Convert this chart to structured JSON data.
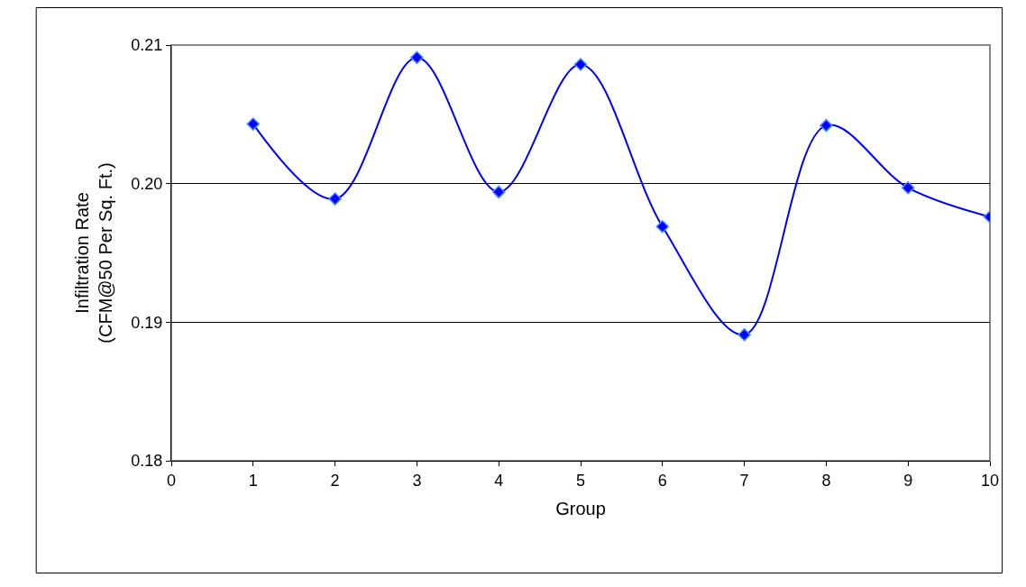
{
  "chart_data": {
    "type": "line",
    "xlabel": "Group",
    "ylabel": "Infiltration Rate\n(CFM@50 Per Sq. Ft.)",
    "x": [
      1,
      2,
      3,
      4,
      5,
      6,
      7,
      8,
      9,
      10
    ],
    "series": [
      {
        "color": "#0000ff",
        "values": [
          0.2043,
          0.1989,
          0.2091,
          0.1994,
          0.2086,
          0.1969,
          0.1891,
          0.2042,
          0.1997,
          0.1976
        ]
      }
    ],
    "xlim": [
      0,
      10
    ],
    "xticks": [
      0,
      1,
      2,
      3,
      4,
      5,
      6,
      7,
      8,
      9,
      10
    ],
    "ylim": [
      0.18,
      0.21
    ],
    "yticks": [
      {
        "value": 0.18,
        "label": "0.18"
      },
      {
        "value": 0.19,
        "label": "0.19"
      },
      {
        "value": 0.2,
        "label": "0.20"
      },
      {
        "value": 0.21,
        "label": "0.21"
      }
    ],
    "grid": "y",
    "marker": "diamond",
    "line_style": "solid"
  }
}
